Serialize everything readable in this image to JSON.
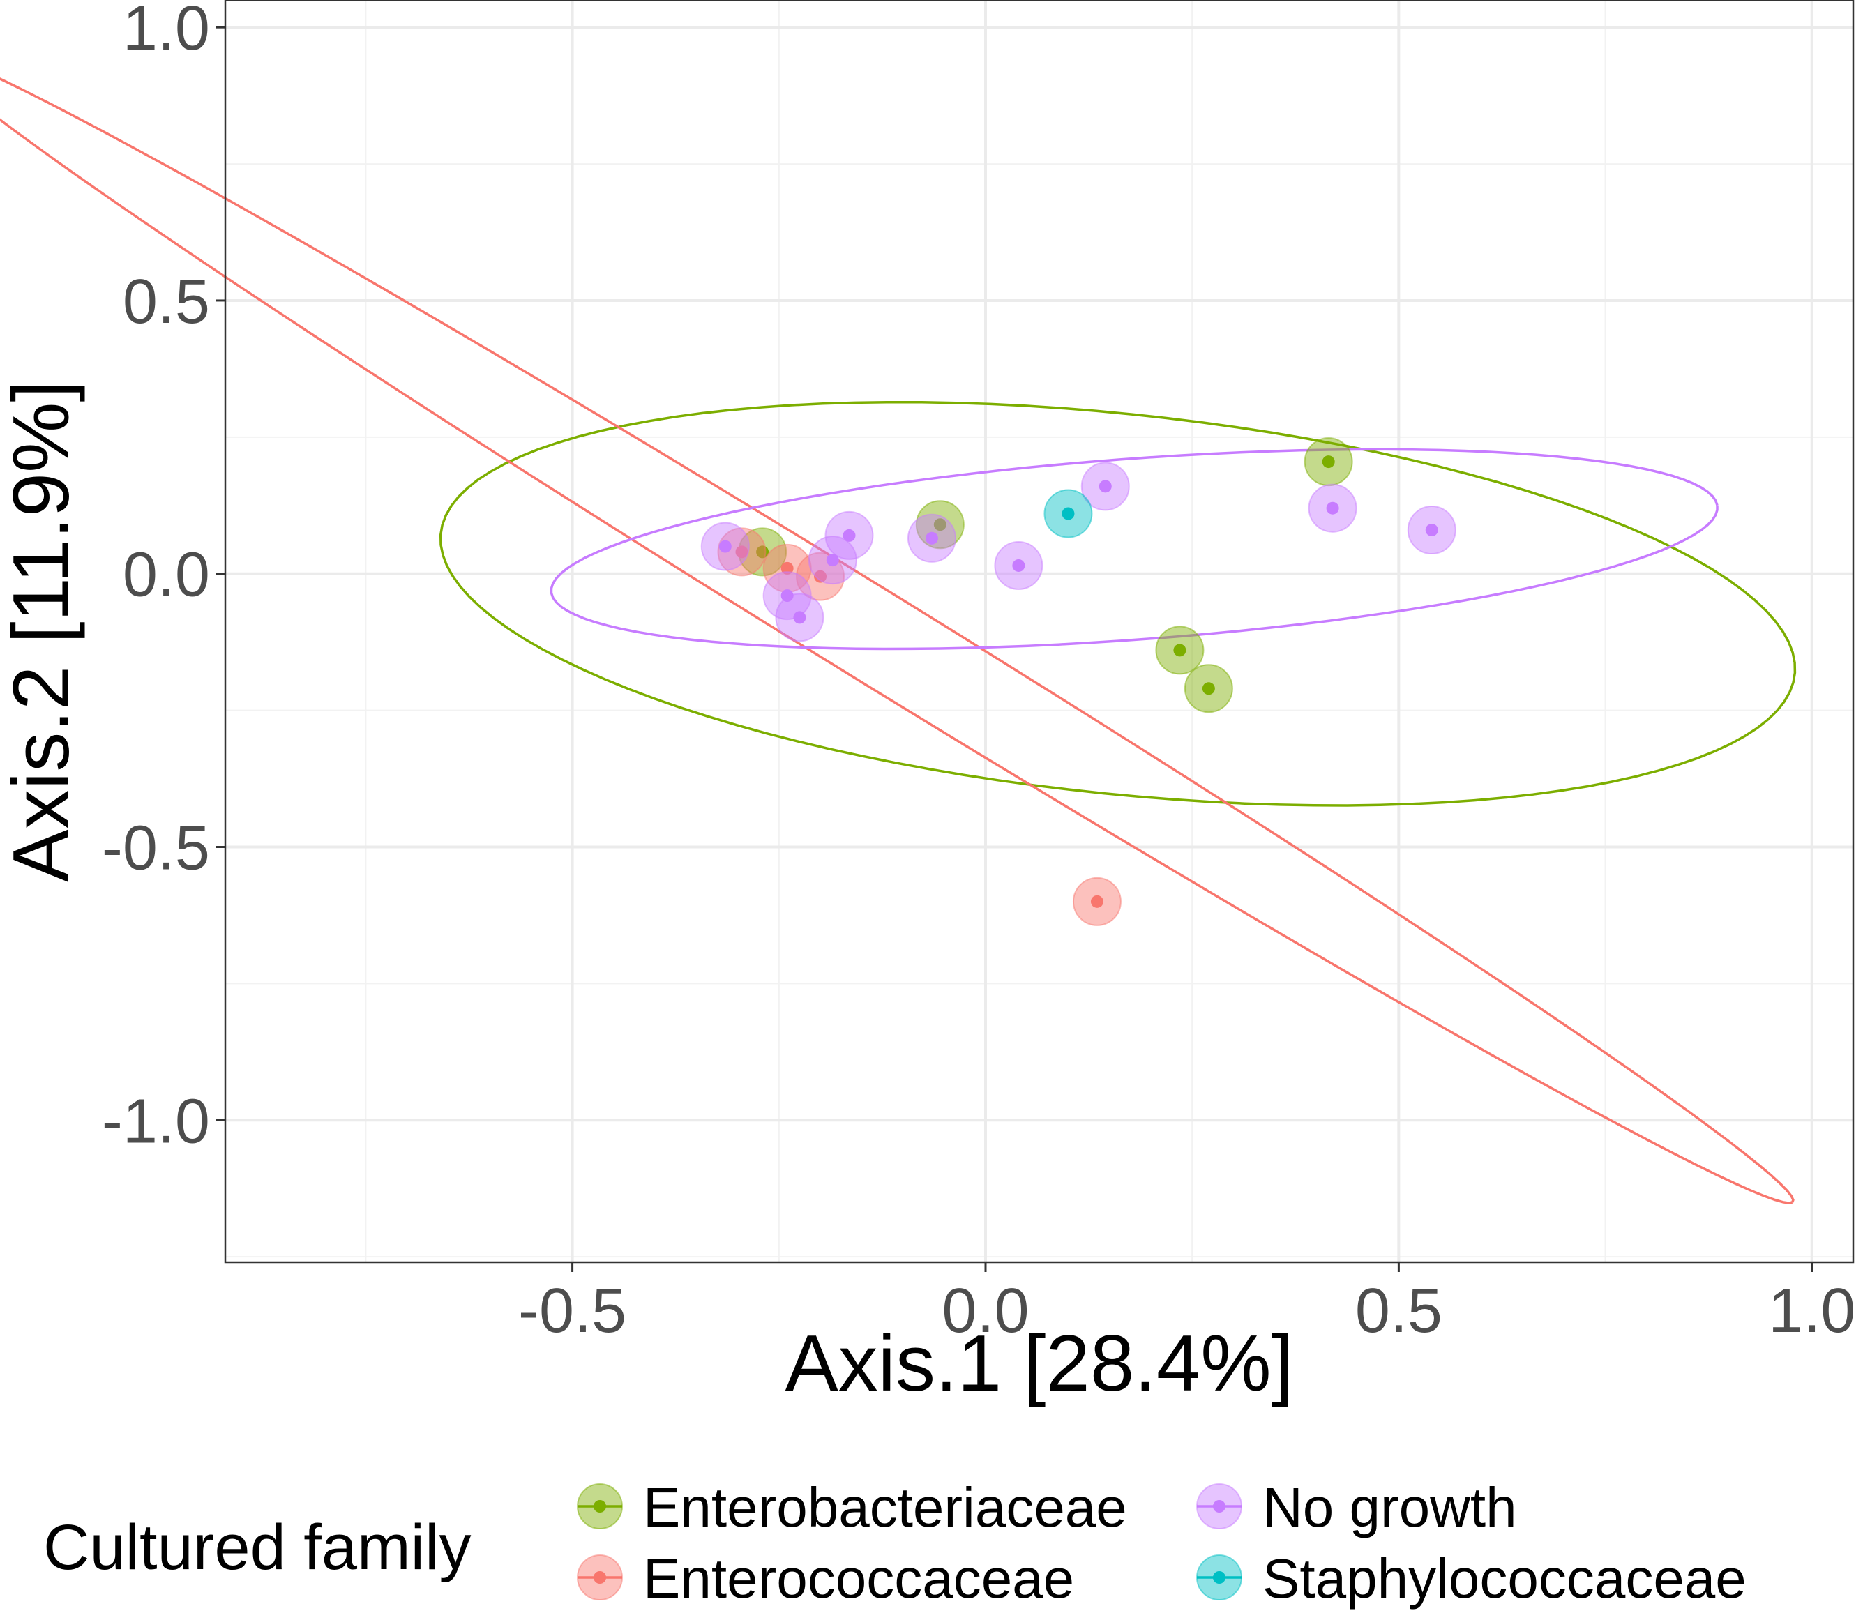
{
  "chart_data": {
    "type": "scatter",
    "title": "",
    "xlabel": "Axis.1   [28.4%]",
    "ylabel": "Axis.2   [11.9%]",
    "xlim": [
      -0.92,
      1.05
    ],
    "ylim": [
      -1.26,
      1.05
    ],
    "xticks": [
      -0.5,
      0.0,
      0.5,
      1.0
    ],
    "xtick_labels": [
      "-0.5",
      "0.0",
      "0.5",
      "1.0"
    ],
    "yticks": [
      -1.0,
      -0.5,
      0.0,
      0.5,
      1.0
    ],
    "ytick_labels": [
      "-1.0",
      "-0.5",
      "0.0",
      "0.5",
      "1.0"
    ],
    "grid": true,
    "legend": {
      "title": "Cultured family",
      "position": "bottom",
      "entries": [
        {
          "label": "Enterobacteriaceae",
          "color": "#7CAE00"
        },
        {
          "label": "Enterococcaceae",
          "color": "#F8766D"
        },
        {
          "label": "No growth",
          "color": "#C77CFF"
        },
        {
          "label": "Staphylococcaceae",
          "color": "#00BFC4"
        }
      ]
    },
    "series": [
      {
        "name": "Enterobacteriaceae",
        "color": "#7CAE00",
        "points": [
          [
            -0.27,
            0.04
          ],
          [
            -0.055,
            0.09
          ],
          [
            0.235,
            -0.14
          ],
          [
            0.27,
            -0.21
          ],
          [
            0.415,
            0.205
          ]
        ],
        "ellipse": {
          "center": [
            0.16,
            -0.055
          ],
          "semi_axes": [
            0.83,
            0.345
          ],
          "angle_deg": -10
        }
      },
      {
        "name": "Enterococcaceae",
        "color": "#F8766D",
        "points": [
          [
            -0.295,
            0.04
          ],
          [
            -0.24,
            0.01
          ],
          [
            -0.2,
            -0.005
          ],
          [
            0.135,
            -0.6
          ]
        ],
        "ellipse": {
          "center": [
            -0.15,
            -0.1
          ],
          "semi_axes": [
            1.54,
            0.072
          ],
          "angle_deg": -43
        }
      },
      {
        "name": "No growth",
        "color": "#C77CFF",
        "points": [
          [
            -0.315,
            0.05
          ],
          [
            -0.24,
            -0.04
          ],
          [
            -0.225,
            -0.08
          ],
          [
            -0.185,
            0.025
          ],
          [
            -0.165,
            0.07
          ],
          [
            -0.065,
            0.065
          ],
          [
            0.04,
            0.015
          ],
          [
            0.145,
            0.16
          ],
          [
            0.42,
            0.12
          ],
          [
            0.54,
            0.08
          ]
        ],
        "ellipse": {
          "center": [
            0.18,
            0.045
          ],
          "semi_axes": [
            0.71,
            0.165
          ],
          "angle_deg": 6.5
        }
      },
      {
        "name": "Staphylococcaceae",
        "color": "#00BFC4",
        "points": [
          [
            0.1,
            0.11
          ]
        ],
        "ellipse": null
      }
    ]
  }
}
